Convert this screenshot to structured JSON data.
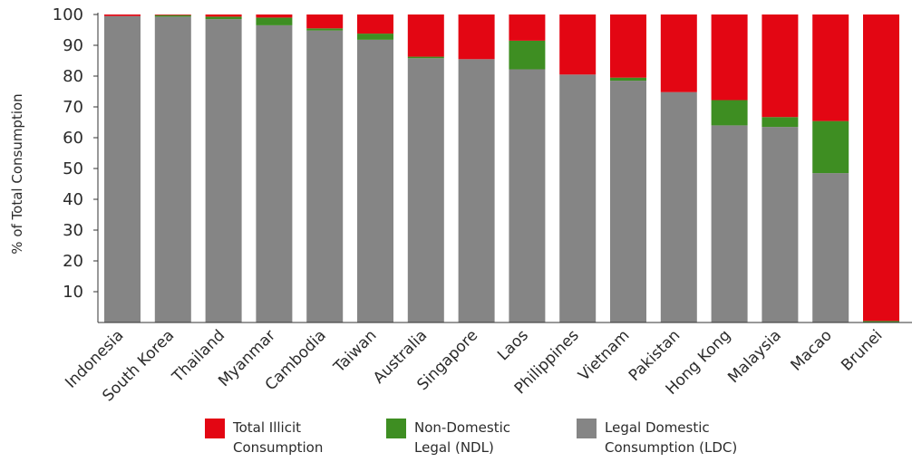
{
  "chart_data": {
    "type": "bar",
    "stacked": true,
    "categories": [
      "Indonesia",
      "South Korea",
      "Thailand",
      "Myanmar",
      "Cambodia",
      "Taiwan",
      "Australia",
      "Singapore",
      "Laos",
      "Philippines",
      "Vietnam",
      "Pakistan",
      "Hong Kong",
      "Malaysia",
      "Macao",
      "Brunei"
    ],
    "series": [
      {
        "name": "Legal Domestic Consumption (LDC)",
        "color": "#858585",
        "values": [
          99.5,
          99.3,
          98.5,
          96.5,
          94.8,
          91.8,
          85.8,
          85.5,
          82.2,
          80.5,
          78.5,
          74.8,
          64.0,
          63.5,
          48.5,
          0
        ]
      },
      {
        "name": "Non-Domestic Legal (NDL)",
        "color": "#3e8e22",
        "values": [
          0,
          0.5,
          0.8,
          2.5,
          0.7,
          2.0,
          0.5,
          0,
          9.3,
          0,
          1.0,
          0,
          8.2,
          3.2,
          16.9,
          0.5
        ]
      },
      {
        "name": "Total Illicit Consumption",
        "color": "#e30613",
        "values": [
          0.5,
          0.2,
          0.7,
          1.0,
          4.5,
          6.2,
          13.7,
          14.5,
          8.5,
          19.5,
          20.5,
          25.2,
          27.8,
          33.3,
          34.6,
          99.5
        ]
      }
    ],
    "ylabel": "% of Total Consumption",
    "xlabel": "",
    "ylim": [
      0,
      100
    ],
    "yticks": [
      10,
      20,
      30,
      40,
      50,
      60,
      70,
      80,
      90,
      100
    ],
    "grid": false,
    "legend": {
      "position": "bottom",
      "items": [
        {
          "lines": [
            "Total Illicit",
            "Consumption"
          ],
          "color": "#e30613"
        },
        {
          "lines": [
            "Non-Domestic",
            "Legal (NDL)"
          ],
          "color": "#3e8e22"
        },
        {
          "lines": [
            "Legal Domestic",
            "Consumption (LDC)"
          ],
          "color": "#858585"
        }
      ]
    }
  }
}
